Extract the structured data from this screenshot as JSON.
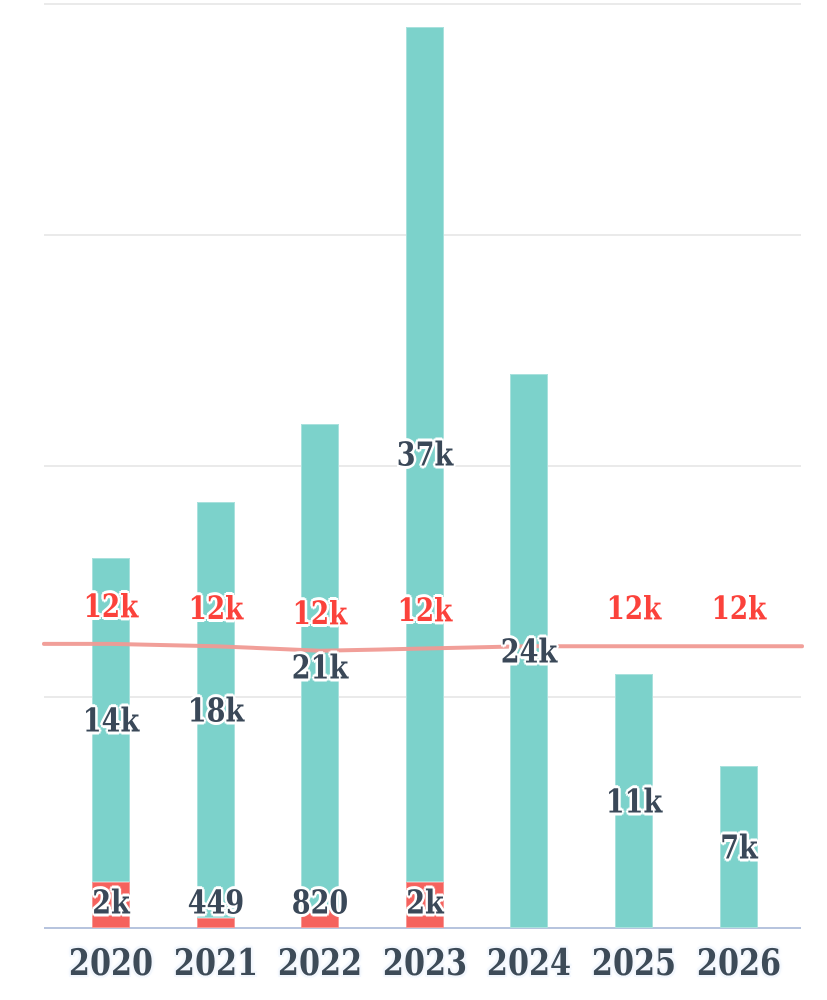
{
  "chart_data": {
    "type": "bar",
    "subtype": "stacked-bar-with-line-overlay",
    "title": "",
    "xlabel": "",
    "ylabel": "",
    "categories": [
      "2020",
      "2021",
      "2022",
      "2023",
      "2024",
      "2025",
      "2026"
    ],
    "unit": "thousands",
    "series": [
      {
        "name": "bottom-segment",
        "type": "bar",
        "stack": "total",
        "color": "#f5625d",
        "values_k": [
          2,
          0.449,
          0.82,
          2,
          0,
          0,
          0
        ],
        "labels": [
          "2k",
          "449",
          "820",
          "2k",
          "",
          "",
          ""
        ],
        "label_color": "#3a4858"
      },
      {
        "name": "main-segment",
        "type": "bar",
        "stack": "total",
        "color": "#7cd2cb",
        "values_k": [
          14,
          18,
          21,
          37,
          24,
          11,
          7
        ],
        "labels": [
          "14k",
          "18k",
          "21k",
          "37k",
          "24k",
          "11k",
          "7k"
        ],
        "label_color": "#3a4858"
      },
      {
        "name": "trend-line",
        "type": "line",
        "color": "#f09a94",
        "values_k": [
          12.3,
          12.2,
          12.0,
          12.1,
          12.2,
          12.2,
          12.2
        ],
        "labels": [
          "12k",
          "12k",
          "12k",
          "12k",
          "",
          "12k",
          "12k"
        ],
        "label_color": "#fb423b"
      }
    ],
    "y_axis": {
      "min": 0,
      "max": 40,
      "gridline_interval_k": 10,
      "tick_labels_visible": false,
      "grid": true
    },
    "x_axis": {
      "labels_visible": true,
      "label_color": "#3d4b58",
      "axis_line_color": "#b7c4de"
    },
    "legend": {
      "visible": false
    },
    "colors": {
      "background": "#ffffff",
      "gridline": "#eaeaea"
    }
  }
}
